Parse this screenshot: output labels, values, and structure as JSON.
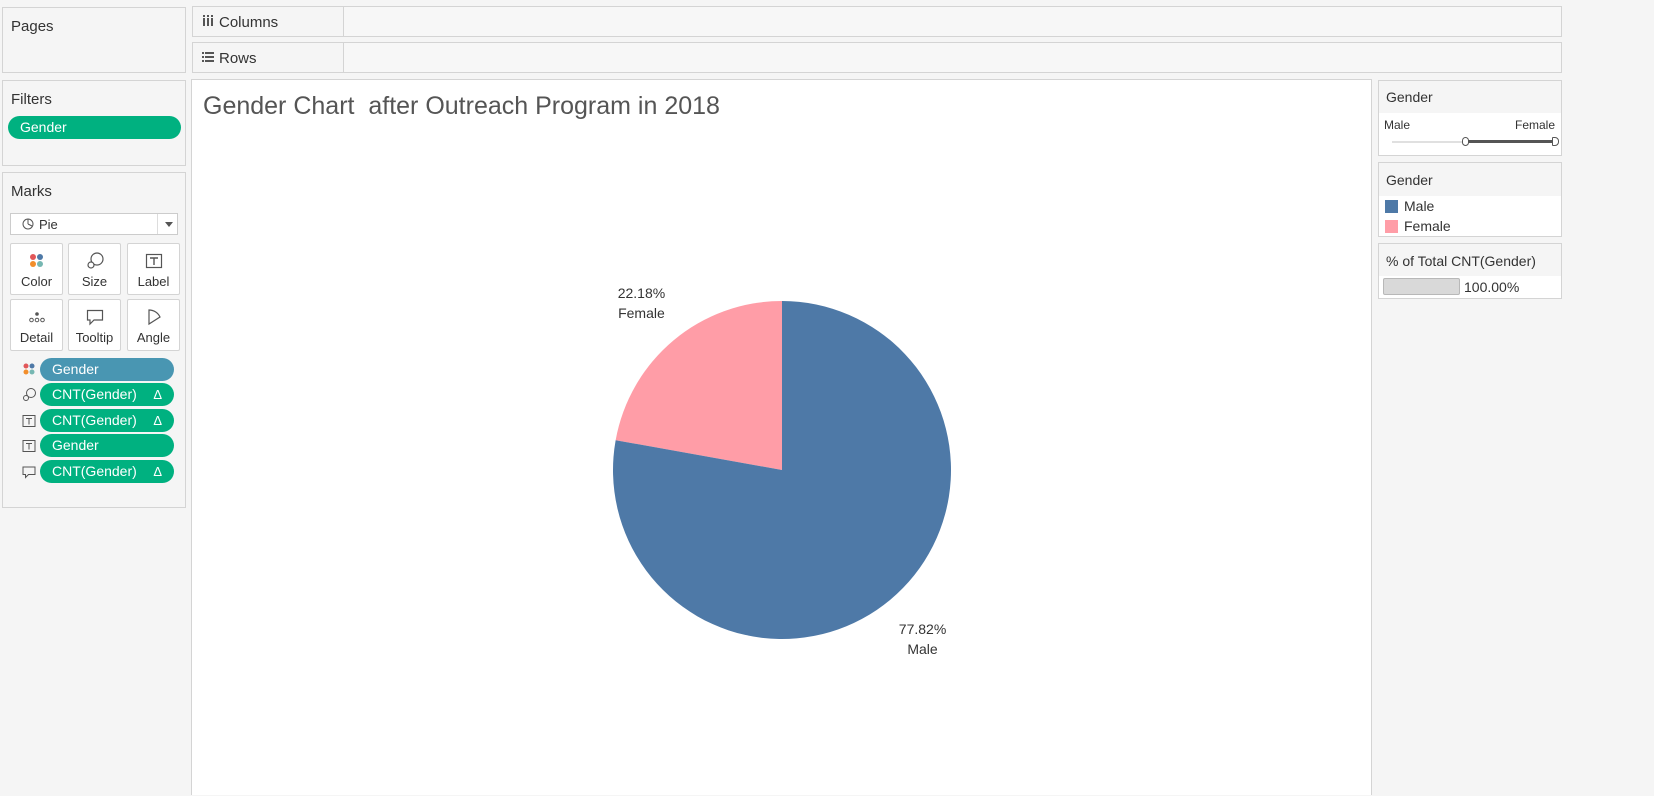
{
  "shelves": {
    "pages": "Pages",
    "columns": "Columns",
    "rows": "Rows"
  },
  "filters": {
    "title": "Filters",
    "pills": [
      "Gender"
    ]
  },
  "marks": {
    "title": "Marks",
    "type": "Pie",
    "buttons": [
      "Color",
      "Size",
      "Label",
      "Detail",
      "Tooltip",
      "Angle"
    ],
    "pills": [
      {
        "text": "Gender",
        "delta": ""
      },
      {
        "text": "CNT(Gender)",
        "delta": "Δ"
      },
      {
        "text": "CNT(Gender)",
        "delta": "Δ"
      },
      {
        "text": "Gender",
        "delta": ""
      },
      {
        "text": "CNT(Gender)",
        "delta": "Δ"
      }
    ]
  },
  "view": {
    "title": "Gender Chart  after Outreach Program in 2018"
  },
  "chart_data": {
    "type": "pie",
    "slices": [
      {
        "category": "Female",
        "value": 22.18,
        "label": "22.18%",
        "color": "#ff9da7"
      },
      {
        "category": "Male",
        "value": 77.82,
        "label": "77.82%",
        "color": "#4e79a7"
      }
    ]
  },
  "gender_filter": {
    "title": "Gender",
    "min_label": "Male",
    "max_label": "Female"
  },
  "color_legend": {
    "title": "Gender",
    "items": [
      {
        "label": "Male",
        "color": "#4e79a7"
      },
      {
        "label": "Female",
        "color": "#ff9da7"
      }
    ]
  },
  "size_legend": {
    "title": "% of Total CNT(Gender)",
    "value": "100.00%"
  }
}
